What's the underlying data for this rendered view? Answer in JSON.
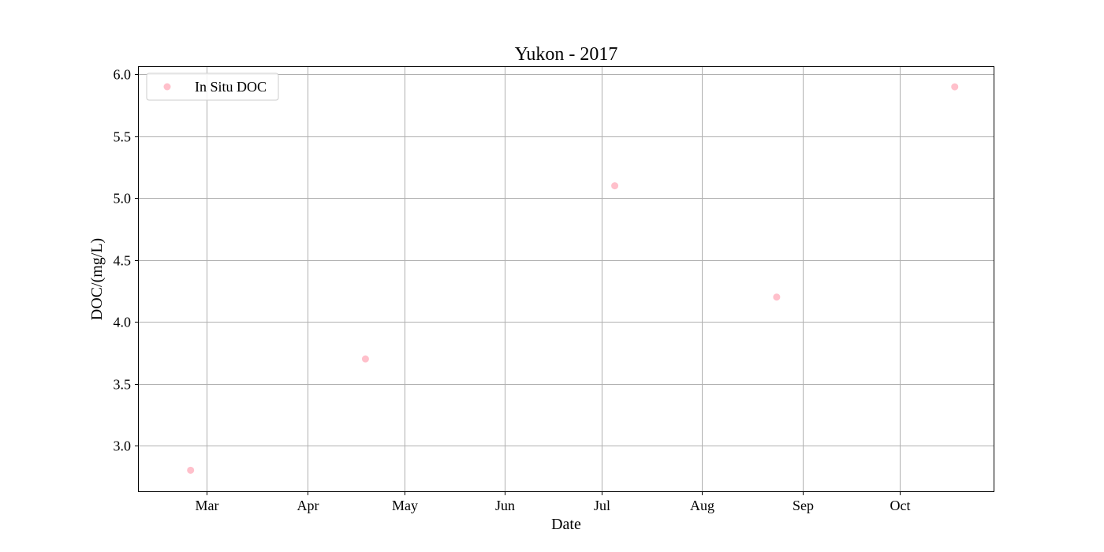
{
  "chart_data": {
    "type": "scatter",
    "title": "Yukon - 2017",
    "xlabel": "Date",
    "ylabel": "DOC/(mg/L)",
    "xlim": [
      "2017-02-08",
      "2017-10-30"
    ],
    "ylim": [
      2.63,
      6.06
    ],
    "grid": true,
    "legend_position": "top-left",
    "x_ticks": [
      {
        "date": "2017-03-01",
        "label": "Mar"
      },
      {
        "date": "2017-04-01",
        "label": "Apr"
      },
      {
        "date": "2017-05-01",
        "label": "May"
      },
      {
        "date": "2017-06-01",
        "label": "Jun"
      },
      {
        "date": "2017-07-01",
        "label": "Jul"
      },
      {
        "date": "2017-08-01",
        "label": "Aug"
      },
      {
        "date": "2017-09-01",
        "label": "Sep"
      },
      {
        "date": "2017-10-01",
        "label": "Oct"
      }
    ],
    "y_ticks": [
      {
        "value": 3.0,
        "label": "3.0"
      },
      {
        "value": 3.5,
        "label": "3.5"
      },
      {
        "value": 4.0,
        "label": "4.0"
      },
      {
        "value": 4.5,
        "label": "4.5"
      },
      {
        "value": 5.0,
        "label": "5.0"
      },
      {
        "value": 5.5,
        "label": "5.5"
      },
      {
        "value": 6.0,
        "label": "6.0"
      }
    ],
    "series": [
      {
        "name": "In Situ DOC",
        "color": "#ffc0cb",
        "points": [
          {
            "x": "2017-02-24",
            "y": 2.8
          },
          {
            "x": "2017-04-19",
            "y": 3.7
          },
          {
            "x": "2017-07-05",
            "y": 5.1
          },
          {
            "x": "2017-08-24",
            "y": 4.2
          },
          {
            "x": "2017-10-18",
            "y": 5.9
          }
        ]
      }
    ]
  }
}
